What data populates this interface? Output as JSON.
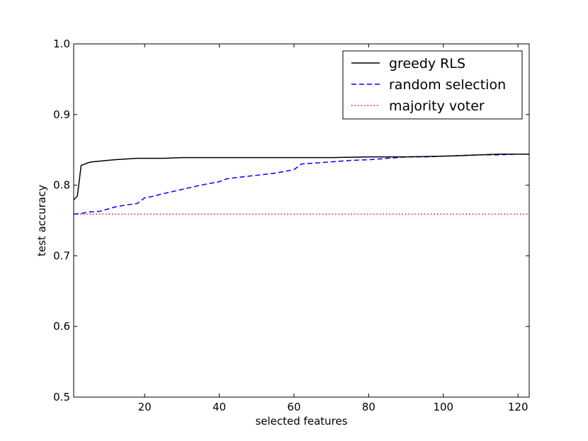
{
  "chart_data": {
    "type": "line",
    "title": "",
    "xlabel": "selected features",
    "ylabel": "test accuracy",
    "xlim": [
      1,
      123
    ],
    "ylim": [
      0.5,
      1.0
    ],
    "xticks": [
      20,
      40,
      60,
      80,
      100,
      120
    ],
    "yticks": [
      0.5,
      0.6,
      0.7,
      0.8,
      0.9,
      1.0
    ],
    "ytick_labels": [
      "0.5",
      "0.6",
      "0.7",
      "0.8",
      "0.9",
      "1.0"
    ],
    "grid": false,
    "legend_position": "top-right",
    "series": [
      {
        "name": "greedy RLS",
        "color": "#000000",
        "style": "solid",
        "x": [
          1,
          2,
          3,
          4,
          5,
          6,
          8,
          10,
          12,
          15,
          18,
          20,
          25,
          30,
          40,
          50,
          60,
          70,
          80,
          90,
          100,
          110,
          115,
          120,
          123
        ],
        "y": [
          0.779,
          0.785,
          0.828,
          0.83,
          0.832,
          0.833,
          0.834,
          0.835,
          0.836,
          0.837,
          0.838,
          0.838,
          0.838,
          0.839,
          0.839,
          0.839,
          0.839,
          0.839,
          0.84,
          0.84,
          0.841,
          0.843,
          0.844,
          0.844,
          0.844
        ]
      },
      {
        "name": "random selection",
        "color": "#0000ff",
        "style": "dashed",
        "x": [
          1,
          3,
          5,
          8,
          10,
          12,
          15,
          18,
          20,
          22,
          25,
          30,
          35,
          40,
          42,
          45,
          50,
          55,
          58,
          60,
          62,
          65,
          70,
          75,
          80,
          85,
          90,
          95,
          100,
          105,
          110,
          115,
          120,
          123
        ],
        "y": [
          0.759,
          0.76,
          0.762,
          0.763,
          0.766,
          0.769,
          0.772,
          0.774,
          0.782,
          0.784,
          0.788,
          0.794,
          0.8,
          0.805,
          0.809,
          0.811,
          0.814,
          0.817,
          0.82,
          0.822,
          0.83,
          0.831,
          0.833,
          0.835,
          0.836,
          0.838,
          0.84,
          0.84,
          0.841,
          0.842,
          0.843,
          0.843,
          0.844,
          0.844
        ]
      },
      {
        "name": "majority voter",
        "color": "#ff0000",
        "style": "dotted",
        "x": [
          1,
          123
        ],
        "y": [
          0.759,
          0.759
        ]
      }
    ]
  }
}
